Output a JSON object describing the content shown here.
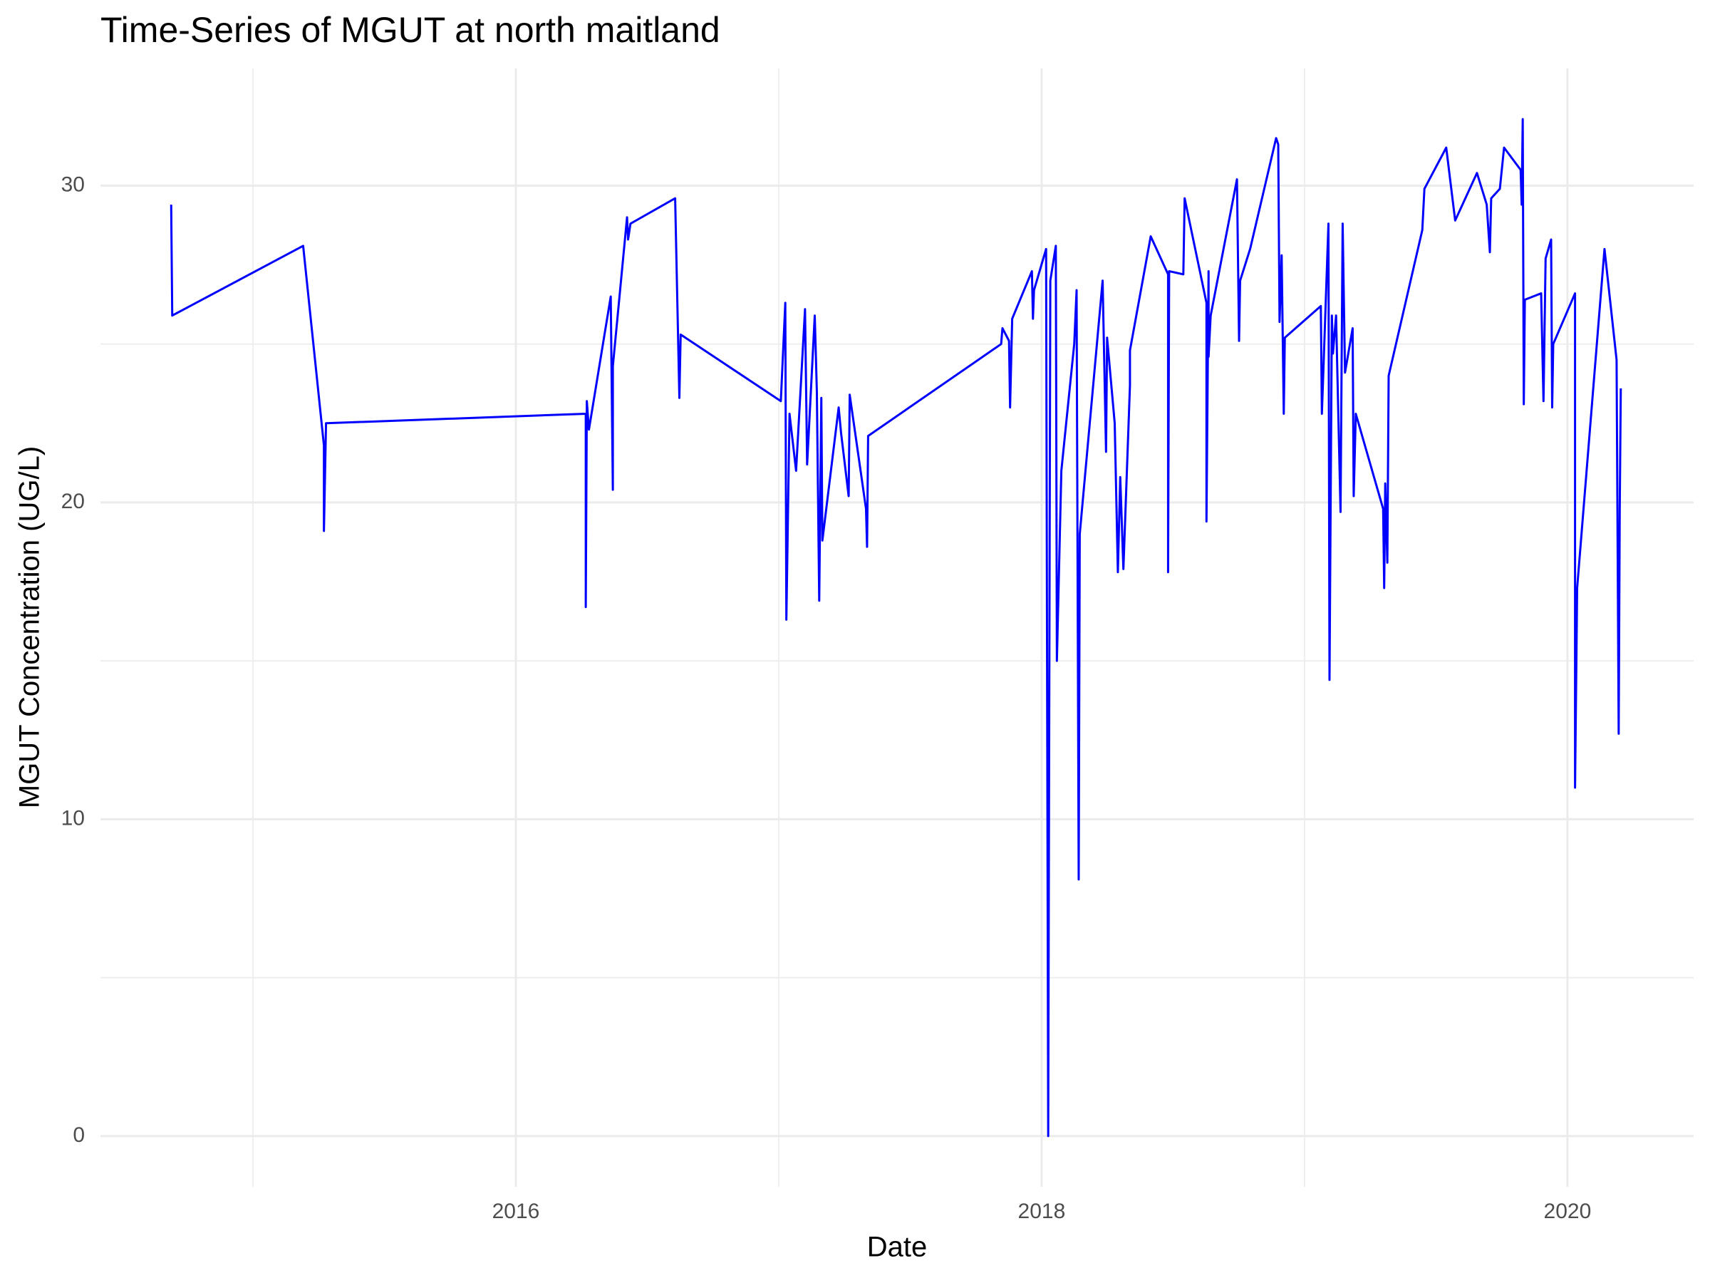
{
  "chart_data": {
    "type": "line",
    "title": "Time-Series of MGUT at north maitland",
    "x_label": "Date",
    "y_label": "MGUT Concentration (UG/L)",
    "color": "#0000ff",
    "grid": true,
    "xlim": [
      2014.42,
      2020.48
    ],
    "xticks": [
      2016,
      2018,
      2020
    ],
    "ylim": [
      -1.6,
      33.7
    ],
    "yticks": [
      0,
      10,
      20,
      30
    ],
    "x": [
      2014.689,
      2014.693,
      2015.191,
      2015.27,
      2015.27,
      2015.278,
      2016.266,
      2016.266,
      2016.27,
      2016.278,
      2016.361,
      2016.369,
      2016.369,
      2016.423,
      2016.427,
      2016.436,
      2016.606,
      2016.622,
      2016.627,
      2017.008,
      2017.025,
      2017.029,
      2017.041,
      2017.066,
      2017.1,
      2017.108,
      2017.137,
      2017.145,
      2017.154,
      2017.162,
      2017.166,
      2017.228,
      2017.237,
      2017.266,
      2017.27,
      2017.332,
      2017.336,
      2017.34,
      2017.846,
      2017.851,
      2017.876,
      2017.88,
      2017.888,
      2017.963,
      2017.967,
      2017.971,
      2018.017,
      2018.025,
      2018.033,
      2018.054,
      2018.058,
      2018.075,
      2018.124,
      2018.133,
      2018.141,
      2018.145,
      2018.232,
      2018.245,
      2018.249,
      2018.278,
      2018.29,
      2018.299,
      2018.311,
      2018.336,
      2018.336,
      2018.415,
      2018.481,
      2018.481,
      2018.485,
      2018.539,
      2018.544,
      2018.627,
      2018.627,
      2018.635,
      2018.635,
      2018.643,
      2018.743,
      2018.751,
      2018.755,
      2018.793,
      2018.892,
      2018.9,
      2018.905,
      2018.913,
      2018.921,
      2018.925,
      2019.062,
      2019.066,
      2019.091,
      2019.095,
      2019.104,
      2019.108,
      2019.12,
      2019.137,
      2019.145,
      2019.154,
      2019.183,
      2019.187,
      2019.195,
      2019.299,
      2019.303,
      2019.307,
      2019.315,
      2019.32,
      2019.448,
      2019.456,
      2019.539,
      2019.573,
      2019.656,
      2019.693,
      2019.705,
      2019.71,
      2019.743,
      2019.759,
      2019.822,
      2019.826,
      2019.83,
      2019.834,
      2019.838,
      2019.9,
      2019.909,
      2019.917,
      2019.938,
      2019.942,
      2019.946,
      2020.029,
      2020.029,
      2020.037,
      2020.141,
      2020.187,
      2020.195,
      2020.199,
      2020.203
    ],
    "values": [
      29.4,
      25.9,
      28.1,
      21.8,
      19.1,
      22.5,
      22.8,
      16.7,
      23.2,
      22.3,
      26.5,
      20.4,
      24.3,
      29.0,
      28.3,
      28.8,
      29.6,
      23.3,
      25.3,
      23.2,
      26.3,
      16.3,
      22.8,
      21.0,
      26.1,
      21.2,
      25.9,
      23.5,
      16.9,
      23.3,
      18.8,
      23.0,
      22.2,
      20.2,
      23.4,
      19.8,
      18.6,
      22.1,
      25.0,
      25.5,
      25.1,
      23.0,
      25.8,
      27.3,
      25.8,
      26.7,
      28.0,
      0,
      27.0,
      28.1,
      15.0,
      21.0,
      25.0,
      26.7,
      8.1,
      19.0,
      27.0,
      21.6,
      25.2,
      22.5,
      17.8,
      20.8,
      17.9,
      23.7,
      24.8,
      28.4,
      27.2,
      17.8,
      27.3,
      27.2,
      29.6,
      26.3,
      19.4,
      27.3,
      24.6,
      25.9,
      30.2,
      25.1,
      27.0,
      28.0,
      31.5,
      31.3,
      25.7,
      27.8,
      22.8,
      25.2,
      26.2,
      22.8,
      28.8,
      14.4,
      25.9,
      24.7,
      25.9,
      19.7,
      28.8,
      24.1,
      25.5,
      20.2,
      22.8,
      19.8,
      17.3,
      20.6,
      18.1,
      24.0,
      28.6,
      29.9,
      31.2,
      28.9,
      30.4,
      29.4,
      27.9,
      29.6,
      29.9,
      31.2,
      30.5,
      29.4,
      32.1,
      23.1,
      26.4,
      26.6,
      23.2,
      27.7,
      28.3,
      23.0,
      25.0,
      26.6,
      11.0,
      17.3,
      28.0,
      24.5,
      12.7,
      19.8,
      23.6
    ]
  }
}
